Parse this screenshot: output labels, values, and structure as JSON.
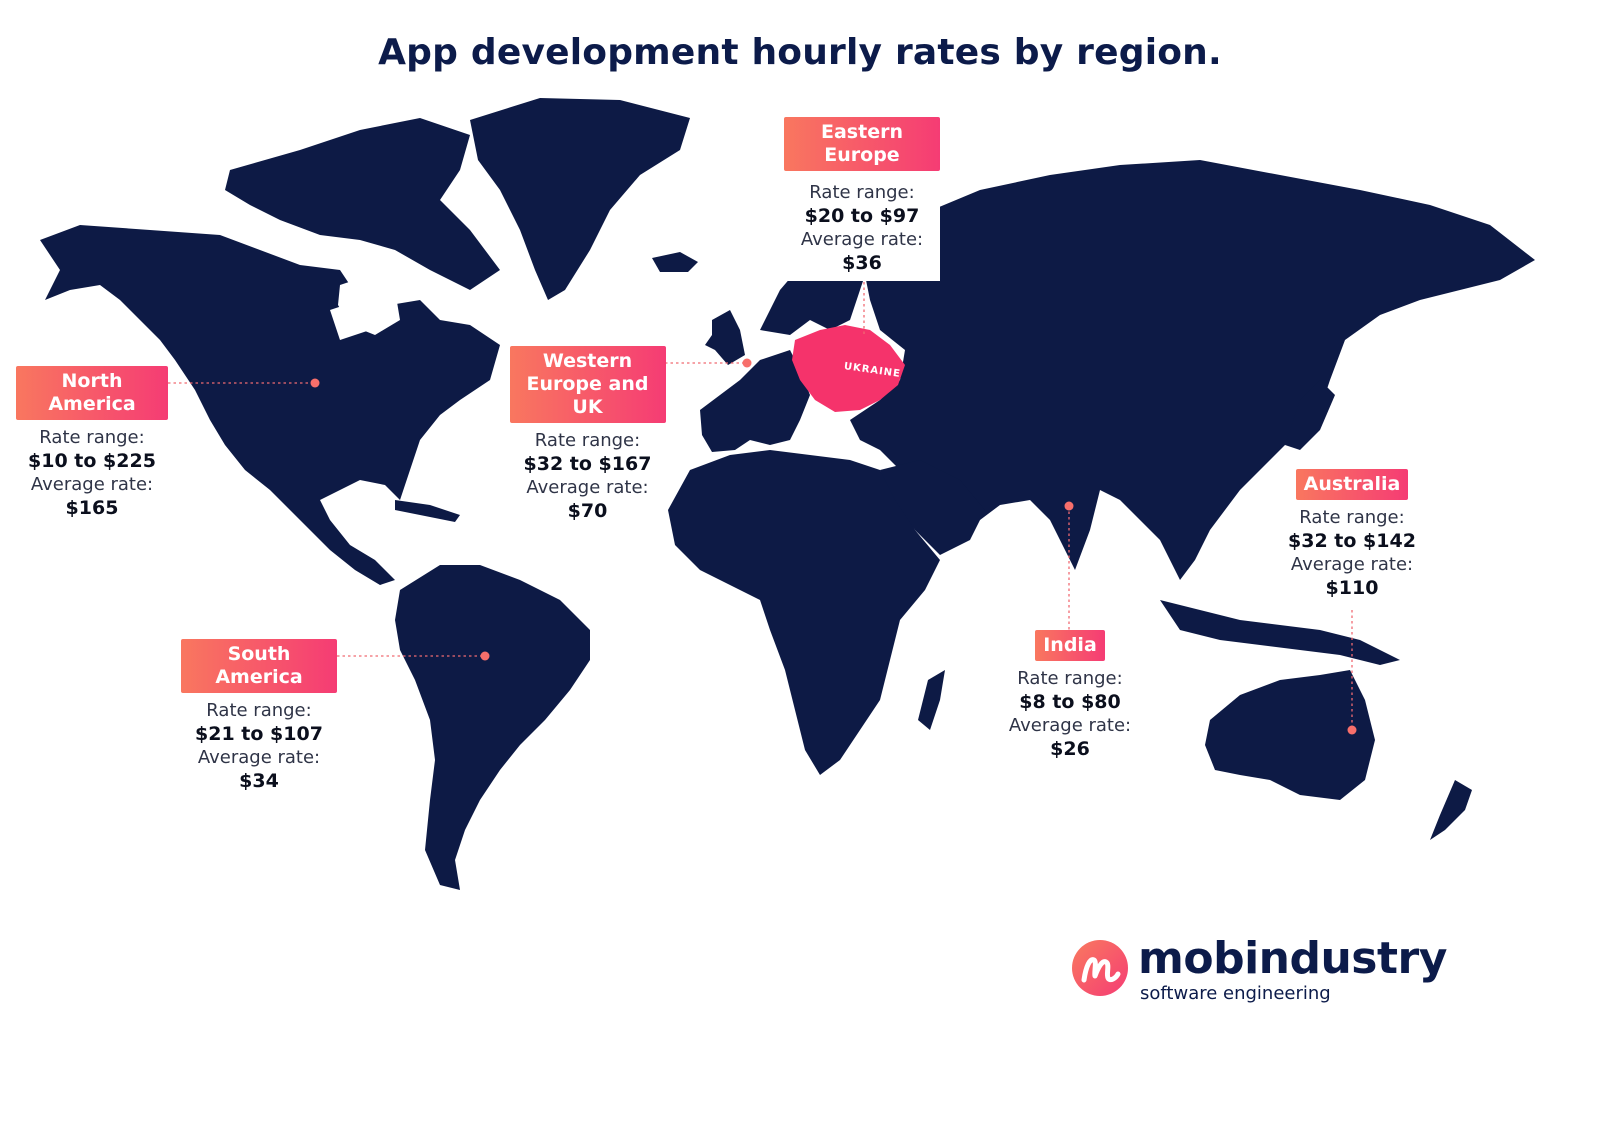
{
  "title": "App development hourly rates by region.",
  "map_label": "UKRAINE",
  "colors": {
    "land": "#0d1a45",
    "highlight": "#f5336b",
    "accent": "#f76f6b"
  },
  "regions": [
    {
      "id": "north-america",
      "name": "North America",
      "rate_range_label": "Rate range:",
      "rate_range": "$10 to $225",
      "average_label": "Average rate:",
      "average": "$165"
    },
    {
      "id": "western-europe",
      "name": "Western Europe and UK",
      "rate_range_label": "Rate range:",
      "rate_range": "$32 to $167",
      "average_label": "Average rate:",
      "average": "$70"
    },
    {
      "id": "eastern-europe",
      "name": "Eastern Europe",
      "rate_range_label": "Rate range:",
      "rate_range": "$20 to $97",
      "average_label": "Average rate:",
      "average": "$36"
    },
    {
      "id": "south-america",
      "name": "South America",
      "rate_range_label": "Rate range:",
      "rate_range": "$21 to $107",
      "average_label": "Average rate:",
      "average": "$34"
    },
    {
      "id": "india",
      "name": "India",
      "rate_range_label": "Rate range:",
      "rate_range": "$8 to $80",
      "average_label": "Average rate:",
      "average": "$26"
    },
    {
      "id": "australia",
      "name": "Australia",
      "rate_range_label": "Rate range:",
      "rate_range": "$32 to $142",
      "average_label": "Average rate:",
      "average": "$110"
    }
  ],
  "logo": {
    "wordmark": "mobindustry",
    "tagline": "software engineering",
    "icon": "mobindustry-m-icon"
  }
}
